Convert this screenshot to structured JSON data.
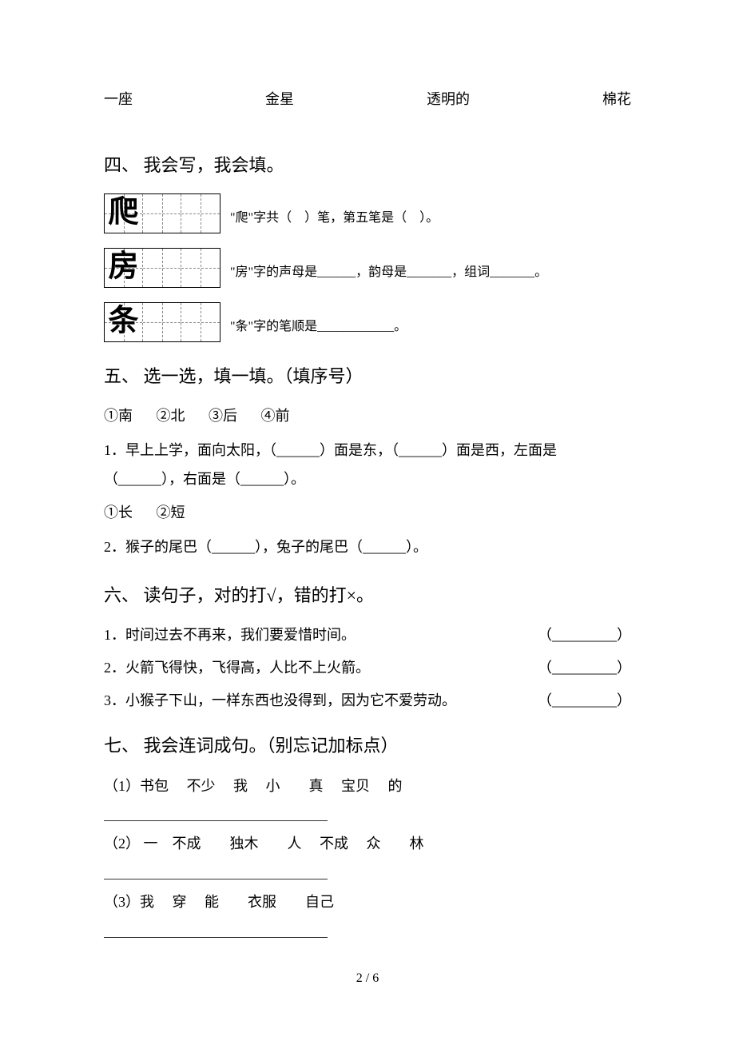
{
  "topRow": {
    "w1": "一座",
    "w2": "金星",
    "w3": "透明的",
    "w4": "棉花"
  },
  "section4": {
    "title": "四、 我会写，我会填。",
    "chars": [
      {
        "char": "爬",
        "desc_prefix": "\"爬\"字共（",
        "desc_mid": "）笔，第五笔是（",
        "desc_suffix": "）。"
      },
      {
        "char": "房",
        "desc": "\"房\"字的声母是______，韵母是_______，组词_______。"
      },
      {
        "char": "条",
        "desc": "\"条\"字的笔顺是____________。"
      }
    ]
  },
  "section5": {
    "title": "五、 选一选，填一填。（填序号）",
    "opts1": [
      "①南",
      "②北",
      "③后",
      "④前"
    ],
    "q1": "1．早上上学，面向太阳，（______）面是东，（______）面是西，左面是（______），右面是（______）。",
    "opts2": [
      "①长",
      "②短"
    ],
    "q2": "2．猴子的尾巴（______），兔子的尾巴（______）。"
  },
  "section6": {
    "title": "六、 读句子，对的打√，错的打×。",
    "items": [
      {
        "text": "1．时间过去不再来，我们要爱惜时间。",
        "paren": "（_________）"
      },
      {
        "text": "2．火箭飞得快，飞得高，人比不上火箭。",
        "paren": "（_________）"
      },
      {
        "text": "3．小猴子下山，一样东西也没得到，因为它不爱劳动。",
        "paren": "（_________）"
      }
    ]
  },
  "section7": {
    "title": "七、 我会连词成句。（别忘记加标点）",
    "items": [
      "（1）书包　 不少　 我　 小　　真　 宝贝　 的",
      "（2） 一　不成　　独木　　人　 不成　 众　　林",
      "（3）我　 穿　 能　　衣服　　自己"
    ]
  },
  "pageNum": "2 / 6"
}
